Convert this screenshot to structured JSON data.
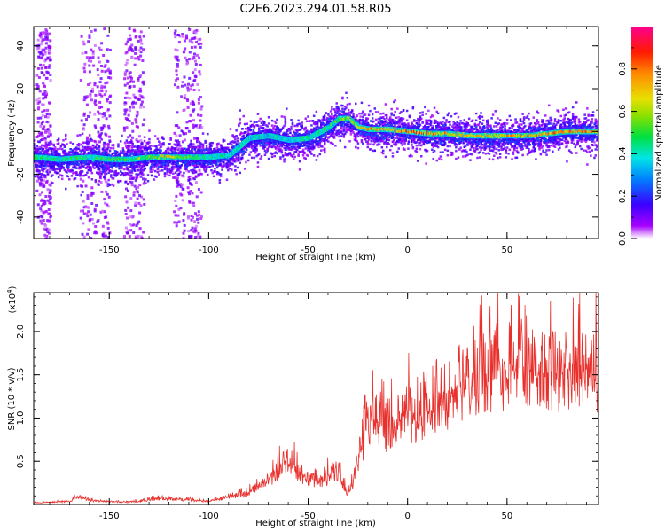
{
  "title": "C2E6.2023.294.01.58.R05",
  "colorbar": {
    "label": "Normalized spectral amplitude",
    "ticks": [
      "0.0",
      "0.2",
      "0.4",
      "0.6",
      "0.8"
    ],
    "range": [
      0,
      1
    ]
  },
  "chart_data": [
    {
      "type": "heatmap",
      "xlabel": "Height of straight line (km)",
      "ylabel": "Frequency (Hz)",
      "xlim": [
        -188,
        96
      ],
      "ylim": [
        -50,
        49
      ],
      "xticks": [
        "-150",
        "-100",
        "-50",
        "0",
        "50"
      ],
      "xtick_values": [
        -150,
        -100,
        -50,
        0,
        50
      ],
      "yticks": [
        "40",
        "20",
        "0",
        "-20",
        "-40"
      ],
      "ytick_values": [
        40,
        20,
        0,
        -20,
        -40
      ],
      "ridge": {
        "x": [
          -188,
          -175,
          -160,
          -150,
          -140,
          -130,
          -120,
          -110,
          -100,
          -90,
          -80,
          -70,
          -60,
          -50,
          -40,
          -35,
          -30,
          -25,
          -20,
          -10,
          0,
          10,
          20,
          30,
          40,
          50,
          60,
          70,
          80,
          92
        ],
        "y": [
          -12,
          -13,
          -12,
          -13,
          -13,
          -12,
          -12,
          -12,
          -12,
          -11,
          -3,
          -2,
          -4,
          -3,
          2,
          6,
          6,
          2,
          1,
          1,
          0,
          -1,
          -1,
          -2,
          -2,
          -2,
          -2,
          -1,
          0,
          0
        ]
      },
      "amplitude_by_x": {
        "x": [
          -188,
          -160,
          -140,
          -120,
          -100,
          -80,
          -60,
          -40,
          -20,
          0,
          20,
          40,
          60,
          80,
          92
        ],
        "v": [
          0.5,
          0.55,
          0.6,
          0.75,
          0.5,
          0.45,
          0.45,
          0.55,
          0.85,
          0.95,
          0.85,
          0.8,
          0.85,
          0.9,
          0.95
        ]
      },
      "noise_bands_x": [
        [
          -165,
          -150
        ],
        [
          -143,
          -133
        ],
        [
          -118,
          -104
        ],
        [
          -187,
          -180
        ]
      ]
    },
    {
      "type": "line",
      "xlabel": "Height of straight line (km)",
      "ylabel": "SNR (10 * v/v)",
      "y_multiplier": "(x10",
      "y_multiplier_exp": "4",
      "y_multiplier_close": ")",
      "xlim": [
        -188,
        96
      ],
      "ylim": [
        0,
        2.45
      ],
      "xticks": [
        "-150",
        "-100",
        "-50",
        "0",
        "50"
      ],
      "xtick_values": [
        -150,
        -100,
        -50,
        0,
        50
      ],
      "yticks": [
        "0.5",
        "1.0",
        "1.5",
        "2.0"
      ],
      "ytick_values": [
        0.5,
        1.0,
        1.5,
        2.0
      ],
      "color": "#e8302c",
      "series": [
        {
          "x": [
            -188,
            -170,
            -165,
            -160,
            -140,
            -125,
            -110,
            -100,
            -90,
            -80,
            -72,
            -66,
            -62,
            -58,
            -52,
            -48,
            -42,
            -38,
            -34,
            -30,
            -28,
            -25,
            -22,
            -20,
            -16,
            -12,
            -8,
            -4,
            0,
            5,
            10,
            15,
            20,
            25,
            30,
            40,
            50,
            60,
            70,
            80,
            90,
            96
          ],
          "y": [
            0.02,
            0.04,
            0.12,
            0.05,
            0.03,
            0.08,
            0.06,
            0.04,
            0.1,
            0.15,
            0.28,
            0.4,
            0.55,
            0.52,
            0.38,
            0.3,
            0.3,
            0.45,
            0.4,
            0.12,
            0.25,
            0.6,
            0.85,
            1.1,
            1.08,
            0.95,
            1.1,
            1.05,
            1.2,
            1.05,
            1.15,
            1.3,
            1.4,
            1.5,
            1.6,
            1.75,
            1.8,
            1.75,
            1.8,
            1.75,
            1.7,
            1.72
          ]
        }
      ]
    }
  ]
}
